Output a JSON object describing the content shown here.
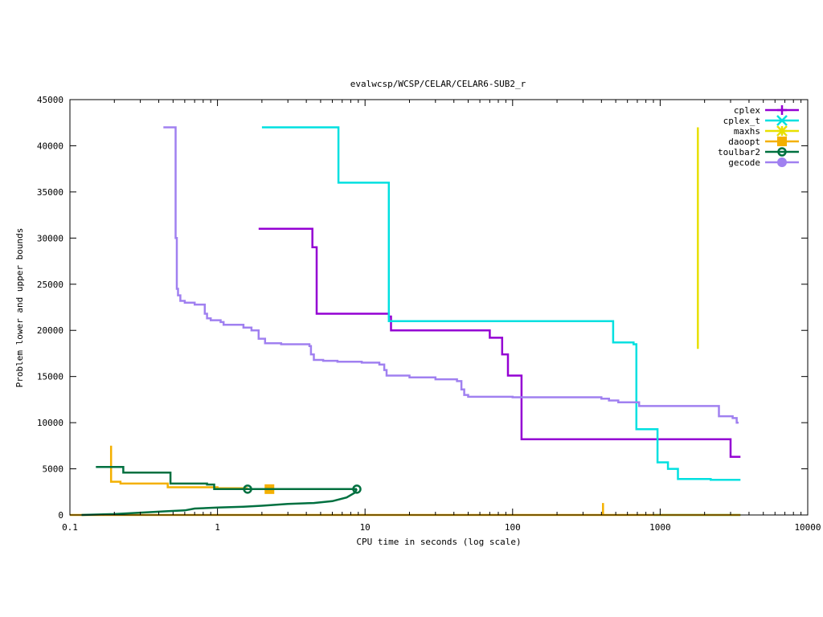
{
  "chart_data": {
    "type": "line",
    "title": "evalwcsp/WCSP/CELAR/CELAR6-SUB2_r",
    "xlabel": "CPU time in seconds (log scale)",
    "ylabel": "Problem lower and upper bounds",
    "x_scale": "log",
    "xlim": [
      0.1,
      10000
    ],
    "ylim": [
      0,
      45000
    ],
    "x_ticks": [
      0.1,
      1,
      10,
      100,
      1000,
      10000
    ],
    "x_tick_labels": [
      "0.1",
      "1",
      "10",
      "100",
      "1000",
      "10000"
    ],
    "y_ticks": [
      0,
      5000,
      10000,
      15000,
      20000,
      25000,
      30000,
      35000,
      40000,
      45000
    ],
    "y_tick_labels": [
      "0",
      "5000",
      "10000",
      "15000",
      "20000",
      "25000",
      "30000",
      "35000",
      "40000",
      "45000"
    ],
    "grid": false,
    "legend_position": "top-right",
    "series": [
      {
        "name": "cplex",
        "color": "#9400d3",
        "marker": "plus",
        "segments": [
          [
            [
              1.9,
              31000
            ],
            [
              4.4,
              31000
            ],
            [
              4.4,
              29000
            ],
            [
              4.7,
              29000
            ],
            [
              4.7,
              21800
            ],
            [
              14.5,
              21800
            ],
            [
              14.5,
              21500
            ],
            [
              15,
              21500
            ],
            [
              15,
              20000
            ],
            [
              70,
              20000
            ],
            [
              70,
              19200
            ],
            [
              85,
              19200
            ],
            [
              85,
              17400
            ],
            [
              93,
              17400
            ],
            [
              93,
              15100
            ],
            [
              115,
              15100
            ],
            [
              115,
              8200
            ],
            [
              3000,
              8200
            ],
            [
              3000,
              6300
            ],
            [
              3500,
              6300
            ]
          ]
        ]
      },
      {
        "name": "cplex_t",
        "color": "#00e0e0",
        "marker": "x",
        "segments": [
          [
            [
              2.0,
              42000
            ],
            [
              6.6,
              42000
            ],
            [
              6.6,
              36000
            ],
            [
              14.5,
              36000
            ],
            [
              14.5,
              21000
            ],
            [
              480,
              21000
            ],
            [
              480,
              18700
            ],
            [
              660,
              18700
            ],
            [
              660,
              18500
            ],
            [
              690,
              18500
            ],
            [
              690,
              9300
            ],
            [
              960,
              9300
            ],
            [
              960,
              5700
            ],
            [
              1130,
              5700
            ],
            [
              1130,
              5000
            ],
            [
              1320,
              5000
            ],
            [
              1320,
              3900
            ],
            [
              2200,
              3900
            ],
            [
              2200,
              3800
            ],
            [
              3500,
              3800
            ]
          ],
          [
            [
              900,
              0
            ],
            [
              3500,
              0
            ]
          ]
        ]
      },
      {
        "name": "maxhs",
        "color": "#e8e000",
        "marker": "star",
        "segments": [
          [
            [
              1800,
              42000
            ],
            [
              1800,
              18000
            ]
          ]
        ]
      },
      {
        "name": "daoopt",
        "color": "#f4b000",
        "marker": "square",
        "segments": [
          [
            [
              0.19,
              7500
            ],
            [
              0.19,
              3600
            ],
            [
              0.22,
              3600
            ],
            [
              0.22,
              3400
            ],
            [
              0.46,
              3400
            ],
            [
              0.46,
              3000
            ],
            [
              1.0,
              3000
            ],
            [
              1.0,
              2900
            ],
            [
              1.6,
              2900
            ]
          ],
          [
            [
              0.1,
              0
            ],
            [
              410,
              0
            ],
            [
              410,
              1300
            ],
            [
              410,
              0
            ],
            [
              3500,
              0
            ]
          ]
        ],
        "points": [
          [
            2.25,
            2800
          ]
        ]
      },
      {
        "name": "toulbar2",
        "color": "#007040",
        "marker": "circle",
        "segments": [
          [
            [
              0.15,
              5200
            ],
            [
              0.23,
              5200
            ],
            [
              0.23,
              4600
            ],
            [
              0.48,
              4600
            ],
            [
              0.48,
              3400
            ],
            [
              0.85,
              3400
            ],
            [
              0.85,
              3300
            ],
            [
              0.95,
              3300
            ],
            [
              0.95,
              2800
            ],
            [
              8.8,
              2800
            ]
          ],
          [
            [
              0.12,
              0
            ],
            [
              0.2,
              100
            ],
            [
              0.3,
              250
            ],
            [
              0.45,
              400
            ],
            [
              0.6,
              500
            ],
            [
              0.7,
              700
            ],
            [
              1.0,
              800
            ],
            [
              1.5,
              900
            ],
            [
              2.0,
              1000
            ],
            [
              3.0,
              1200
            ],
            [
              4.5,
              1300
            ],
            [
              6.0,
              1500
            ],
            [
              7.5,
              1900
            ],
            [
              8.5,
              2400
            ],
            [
              8.8,
              2800
            ]
          ]
        ],
        "points": [
          [
            1.6,
            2800
          ],
          [
            8.8,
            2800
          ]
        ]
      },
      {
        "name": "gecode",
        "color": "#a080f0",
        "marker": "circle-filled",
        "segments": [
          [
            [
              0.43,
              42000
            ],
            [
              0.52,
              42000
            ],
            [
              0.52,
              30000
            ],
            [
              0.53,
              30000
            ],
            [
              0.53,
              24500
            ],
            [
              0.54,
              24500
            ],
            [
              0.54,
              23800
            ],
            [
              0.56,
              23800
            ],
            [
              0.56,
              23200
            ],
            [
              0.6,
              23200
            ],
            [
              0.6,
              23000
            ],
            [
              0.7,
              23000
            ],
            [
              0.7,
              22800
            ],
            [
              0.82,
              22800
            ],
            [
              0.82,
              21800
            ],
            [
              0.85,
              21800
            ],
            [
              0.85,
              21300
            ],
            [
              0.9,
              21300
            ],
            [
              0.9,
              21100
            ],
            [
              1.05,
              21100
            ],
            [
              1.05,
              20900
            ],
            [
              1.1,
              20900
            ],
            [
              1.1,
              20600
            ],
            [
              1.5,
              20600
            ],
            [
              1.5,
              20300
            ],
            [
              1.7,
              20300
            ],
            [
              1.7,
              20000
            ],
            [
              1.9,
              20000
            ],
            [
              1.9,
              19100
            ],
            [
              2.1,
              19100
            ],
            [
              2.1,
              18600
            ],
            [
              2.7,
              18600
            ],
            [
              2.7,
              18500
            ],
            [
              4.2,
              18500
            ],
            [
              4.2,
              18300
            ],
            [
              4.3,
              18300
            ],
            [
              4.3,
              17400
            ],
            [
              4.5,
              17400
            ],
            [
              4.5,
              16800
            ],
            [
              5.2,
              16800
            ],
            [
              5.2,
              16700
            ],
            [
              6.5,
              16700
            ],
            [
              6.5,
              16600
            ],
            [
              9.5,
              16600
            ],
            [
              9.5,
              16500
            ],
            [
              12.5,
              16500
            ],
            [
              12.5,
              16300
            ],
            [
              13.5,
              16300
            ],
            [
              13.5,
              15700
            ],
            [
              14,
              15700
            ],
            [
              14,
              15100
            ],
            [
              20,
              15100
            ],
            [
              20,
              14900
            ],
            [
              30,
              14900
            ],
            [
              30,
              14700
            ],
            [
              42,
              14700
            ],
            [
              42,
              14500
            ],
            [
              45,
              14500
            ],
            [
              45,
              13600
            ],
            [
              47,
              13600
            ],
            [
              47,
              13000
            ],
            [
              50,
              13000
            ],
            [
              50,
              12800
            ],
            [
              100,
              12800
            ],
            [
              100,
              12750
            ],
            [
              400,
              12750
            ],
            [
              400,
              12600
            ],
            [
              450,
              12600
            ],
            [
              450,
              12400
            ],
            [
              520,
              12400
            ],
            [
              520,
              12200
            ],
            [
              720,
              12200
            ],
            [
              720,
              11800
            ],
            [
              2500,
              11800
            ],
            [
              2500,
              10700
            ],
            [
              3100,
              10700
            ],
            [
              3100,
              10500
            ],
            [
              3300,
              10500
            ],
            [
              3300,
              10000
            ],
            [
              3400,
              10000
            ]
          ]
        ]
      }
    ]
  }
}
